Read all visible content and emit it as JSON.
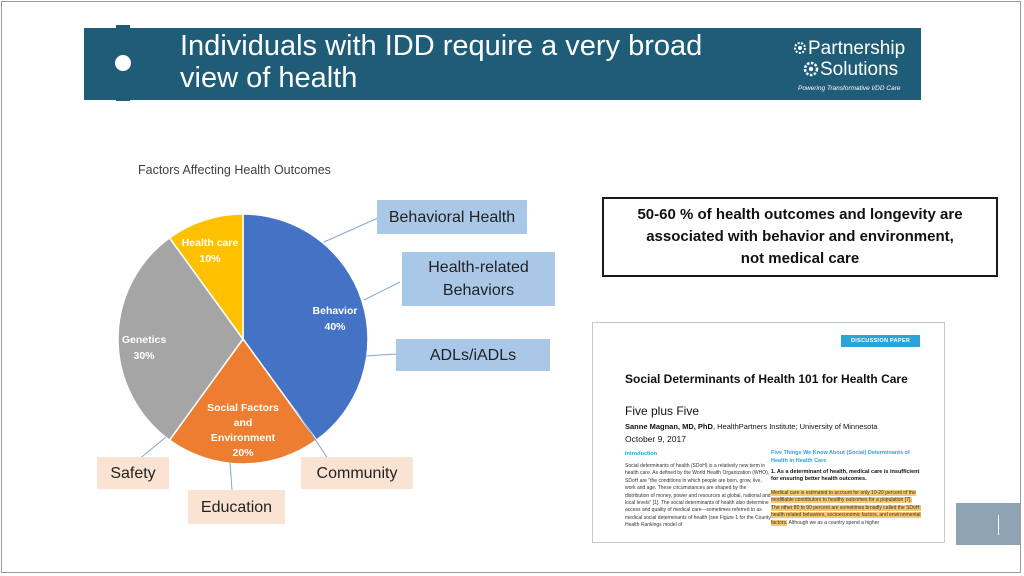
{
  "header": {
    "title_line1": "Individuals with IDD require a very broad",
    "title_line2": "view of health",
    "gear_icon": "gear-icon",
    "logo_line1": "Partnership",
    "logo_line2": "Solutions",
    "logo_tagline": "Powering Transformative I/DD Care"
  },
  "colors": {
    "header_bg": "#1f5c78",
    "behavior": "#4472c4",
    "social": "#ed7d31",
    "genetics": "#a5a5a5",
    "healthcare": "#ffc000",
    "blue_callout": "#a9c8e8",
    "peach_callout": "#fbe3d4"
  },
  "chart_data": {
    "type": "pie",
    "title": "Factors Affecting Health Outcomes",
    "slices": [
      {
        "name": "Behavior",
        "value": 40,
        "label": "40%",
        "color": "#4472c4"
      },
      {
        "name": "Social Factors and Environment",
        "value": 20,
        "label": "20%",
        "color": "#ed7d31"
      },
      {
        "name": "Genetics",
        "value": 30,
        "label": "30%",
        "color": "#a5a5a5"
      },
      {
        "name": "Health care",
        "value": 10,
        "label": "10%",
        "color": "#ffc000"
      }
    ]
  },
  "slice_labels": {
    "behavior_name": "Behavior",
    "behavior_pct": "40%",
    "social_line1": "Social Factors",
    "social_line2": "and",
    "social_line3": "Environment",
    "social_pct": "20%",
    "genetics_name": "Genetics",
    "genetics_pct": "30%",
    "healthcare_name": "Health care",
    "healthcare_pct": "10%"
  },
  "callouts": {
    "behavioral_health": "Behavioral Health",
    "health_related_1": "Health-related",
    "health_related_2": "Behaviors",
    "adls": "ADLs/iADLs",
    "safety": "Safety",
    "community": "Community",
    "education": "Education"
  },
  "key_message": {
    "line1": "50-60 % of health outcomes and longevity are",
    "line2": "associated with behavior and environment,",
    "line3": "not medical care"
  },
  "paper": {
    "badge": "DISCUSSION PAPER",
    "title": "Social Determinants of Health 101 for Health Care",
    "subtitle": "Five plus Five",
    "author_bold": "Sanne Magnan, MD, PhD",
    "author_rest": ", HealthPartners Institute; University of Minnesota",
    "date": "October 9, 2017",
    "intro_heading": "Introduction",
    "intro_text": "Social determinants of health (SDoH) is a relatively new term in health care. As defined by the World Health Organization (WHO), SDoH are \"the conditions in which people are born, grow, live, work and age. These circumstances are shaped by the distribution of money, power and resources at global, national and local levels\" [1]. The social determinants of health also determine access and quality of medical care—sometimes referred to as medical social determinants of health (see Figure 1 for the County Health Rankings model of",
    "col2_heading": "Five Things We Know About (Social) Determinants of Health in Health Care",
    "col2_point": "1. As a determinant of health, medical care is insufficient for ensuring better health outcomes.",
    "col2_highlight": "Medical care is estimated to account for only 10-20 percent of the modifiable contributors to healthy outcomes for a population [7]. The other 80 to 90 percent are sometimes broadly called the SDoH: health related behaviors, socioeconomic factors, and environmental factors.",
    "col2_after": " Although we as a country spend a higher"
  }
}
